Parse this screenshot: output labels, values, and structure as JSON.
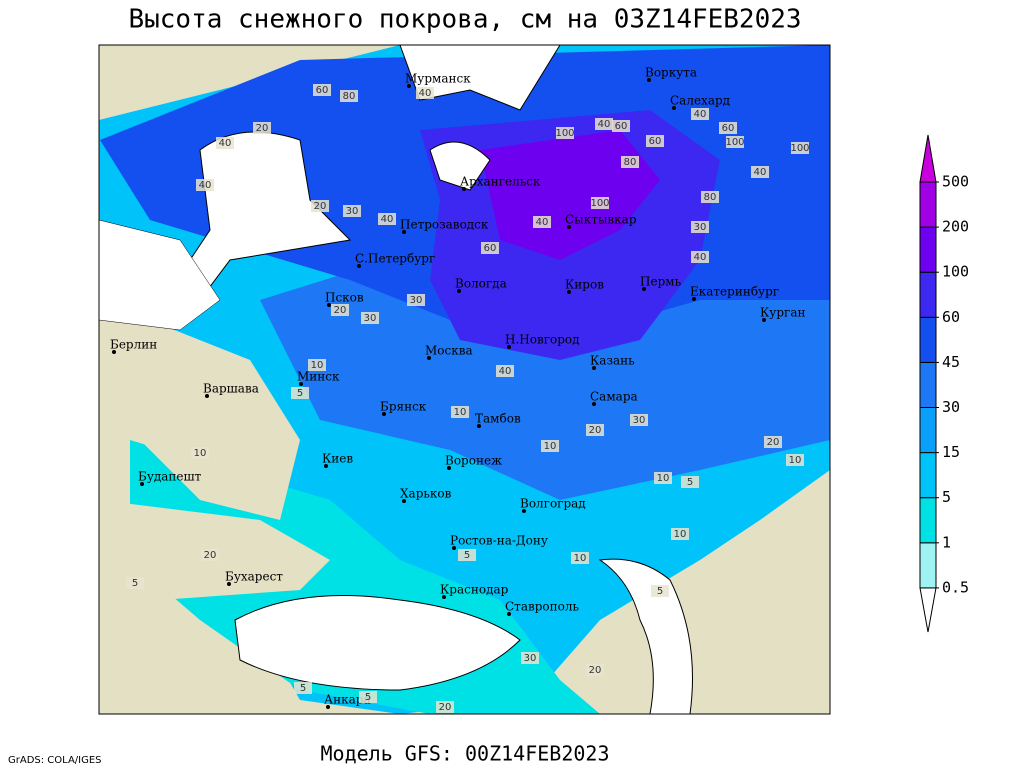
{
  "title": "Высота снежного покрова, см на 03Z14FEB2023",
  "footer": "Модель GFS: 00Z14FEB2023",
  "credit": "GrADS: COLA/IGES",
  "cities": [
    "Мурманск",
    "Воркута",
    "Салехард",
    "Архангельск",
    "Петрозаводск",
    "Сыктывкар",
    "С.Петербург",
    "Вологда",
    "Киров",
    "Пермь",
    "Екатеринбург",
    "Курган",
    "Псков",
    "Москва",
    "Н.Новгород",
    "Казань",
    "Берлин",
    "Варшава",
    "Минск",
    "Брянск",
    "Тамбов",
    "Самара",
    "Киев",
    "Воронеж",
    "Будапешт",
    "Харьков",
    "Волгоград",
    "Ростов-на-Дону",
    "Бухарест",
    "Краснодар",
    "Ставрополь",
    "Анкара"
  ],
  "contour_labels": [
    60,
    80,
    40,
    20,
    40,
    40,
    20,
    30,
    40,
    100,
    40,
    60,
    80,
    100,
    60,
    40,
    100,
    60,
    80,
    30,
    40,
    40,
    60,
    100,
    20,
    30,
    30,
    40,
    10,
    40,
    5,
    10,
    10,
    30,
    20,
    10,
    20,
    10,
    10,
    5,
    10,
    10,
    5,
    20,
    5,
    5,
    5,
    30,
    20,
    5,
    20
  ],
  "colorbar": {
    "levels": [
      0.5,
      1,
      5,
      15,
      30,
      45,
      60,
      100,
      200,
      500
    ],
    "colors": [
      "#ffffff",
      "#9ff3f3",
      "#00e1e6",
      "#00c3fa",
      "#0aa0fa",
      "#1e78f5",
      "#1450f0",
      "#3c28f0",
      "#6e00f0",
      "#a000e6",
      "#c800dc"
    ]
  }
}
